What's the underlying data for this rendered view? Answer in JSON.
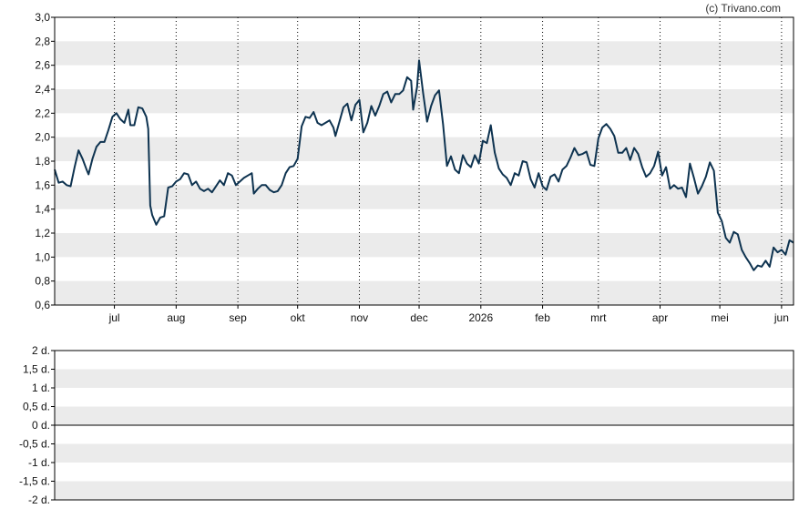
{
  "copyright": "(c) Trivano.com",
  "colors": {
    "line": "#0e3350",
    "band": "#ebebeb",
    "frame": "#000000",
    "vgrid": "#000000"
  },
  "chart_data": [
    {
      "type": "line",
      "title": "",
      "xlabel": "",
      "ylabel": "",
      "ylim": [
        0.6,
        3.0
      ],
      "grid": "alternating horizontal bands, dotted vertical month lines",
      "y_ticks": [
        "3,0",
        "2,8",
        "2,6",
        "2,4",
        "2,2",
        "2,0",
        "1,8",
        "1,6",
        "1,4",
        "1,2",
        "1,0",
        "0,8",
        "0,6"
      ],
      "x_ticks": [
        {
          "label": "jul",
          "day": 30
        },
        {
          "label": "aug",
          "day": 61
        },
        {
          "label": "sep",
          "day": 92
        },
        {
          "label": "okt",
          "day": 122
        },
        {
          "label": "nov",
          "day": 153
        },
        {
          "label": "dec",
          "day": 183
        },
        {
          "label": "2026",
          "day": 214
        },
        {
          "label": "feb",
          "day": 245
        },
        {
          "label": "mrt",
          "day": 273
        },
        {
          "label": "apr",
          "day": 304
        },
        {
          "label": "mei",
          "day": 334
        },
        {
          "label": "jun",
          "day": 365
        }
      ],
      "x_domain": [
        0,
        371
      ],
      "series": [
        {
          "points": [
            [
              0,
              1.73
            ],
            [
              2,
              1.62
            ],
            [
              4,
              1.63
            ],
            [
              6,
              1.6
            ],
            [
              8,
              1.59
            ],
            [
              10,
              1.75
            ],
            [
              12,
              1.89
            ],
            [
              14,
              1.82
            ],
            [
              16,
              1.73
            ],
            [
              17,
              1.69
            ],
            [
              19,
              1.82
            ],
            [
              21,
              1.92
            ],
            [
              23,
              1.96
            ],
            [
              25,
              1.96
            ],
            [
              27,
              2.06
            ],
            [
              29,
              2.17
            ],
            [
              31,
              2.2
            ],
            [
              33,
              2.15
            ],
            [
              35,
              2.12
            ],
            [
              37,
              2.23
            ],
            [
              38,
              2.1
            ],
            [
              40,
              2.1
            ],
            [
              42,
              2.25
            ],
            [
              44,
              2.24
            ],
            [
              46,
              2.17
            ],
            [
              47,
              2.07
            ],
            [
              48,
              1.43
            ],
            [
              49,
              1.35
            ],
            [
              51,
              1.27
            ],
            [
              53,
              1.33
            ],
            [
              55,
              1.34
            ],
            [
              57,
              1.58
            ],
            [
              59,
              1.59
            ],
            [
              61,
              1.63
            ],
            [
              63,
              1.65
            ],
            [
              65,
              1.7
            ],
            [
              67,
              1.69
            ],
            [
              69,
              1.6
            ],
            [
              71,
              1.63
            ],
            [
              73,
              1.57
            ],
            [
              75,
              1.55
            ],
            [
              77,
              1.57
            ],
            [
              79,
              1.54
            ],
            [
              81,
              1.59
            ],
            [
              83,
              1.64
            ],
            [
              85,
              1.6
            ],
            [
              87,
              1.7
            ],
            [
              89,
              1.68
            ],
            [
              91,
              1.6
            ],
            [
              93,
              1.63
            ],
            [
              95,
              1.66
            ],
            [
              97,
              1.68
            ],
            [
              99,
              1.7
            ],
            [
              100,
              1.53
            ],
            [
              102,
              1.57
            ],
            [
              104,
              1.6
            ],
            [
              106,
              1.6
            ],
            [
              108,
              1.56
            ],
            [
              110,
              1.54
            ],
            [
              112,
              1.55
            ],
            [
              114,
              1.6
            ],
            [
              116,
              1.7
            ],
            [
              118,
              1.75
            ],
            [
              120,
              1.76
            ],
            [
              122,
              1.82
            ],
            [
              124,
              2.09
            ],
            [
              126,
              2.17
            ],
            [
              128,
              2.16
            ],
            [
              130,
              2.21
            ],
            [
              132,
              2.12
            ],
            [
              134,
              2.1
            ],
            [
              136,
              2.12
            ],
            [
              138,
              2.14
            ],
            [
              140,
              2.08
            ],
            [
              141,
              2.01
            ],
            [
              143,
              2.13
            ],
            [
              145,
              2.25
            ],
            [
              147,
              2.28
            ],
            [
              149,
              2.14
            ],
            [
              151,
              2.27
            ],
            [
              153,
              2.31
            ],
            [
              155,
              2.04
            ],
            [
              157,
              2.12
            ],
            [
              159,
              2.26
            ],
            [
              161,
              2.18
            ],
            [
              163,
              2.26
            ],
            [
              165,
              2.36
            ],
            [
              167,
              2.38
            ],
            [
              169,
              2.29
            ],
            [
              171,
              2.36
            ],
            [
              173,
              2.36
            ],
            [
              175,
              2.39
            ],
            [
              177,
              2.5
            ],
            [
              179,
              2.47
            ],
            [
              180,
              2.23
            ],
            [
              182,
              2.42
            ],
            [
              183,
              2.64
            ],
            [
              185,
              2.37
            ],
            [
              187,
              2.13
            ],
            [
              189,
              2.26
            ],
            [
              191,
              2.35
            ],
            [
              193,
              2.39
            ],
            [
              195,
              2.11
            ],
            [
              197,
              1.76
            ],
            [
              199,
              1.84
            ],
            [
              201,
              1.73
            ],
            [
              203,
              1.7
            ],
            [
              205,
              1.85
            ],
            [
              207,
              1.78
            ],
            [
              209,
              1.75
            ],
            [
              211,
              1.85
            ],
            [
              213,
              1.78
            ],
            [
              215,
              1.97
            ],
            [
              217,
              1.95
            ],
            [
              219,
              2.1
            ],
            [
              221,
              1.87
            ],
            [
              223,
              1.74
            ],
            [
              225,
              1.69
            ],
            [
              227,
              1.66
            ],
            [
              229,
              1.6
            ],
            [
              231,
              1.7
            ],
            [
              233,
              1.68
            ],
            [
              235,
              1.8
            ],
            [
              237,
              1.79
            ],
            [
              239,
              1.65
            ],
            [
              241,
              1.58
            ],
            [
              243,
              1.7
            ],
            [
              245,
              1.59
            ],
            [
              247,
              1.56
            ],
            [
              249,
              1.67
            ],
            [
              251,
              1.69
            ],
            [
              253,
              1.63
            ],
            [
              255,
              1.73
            ],
            [
              257,
              1.76
            ],
            [
              259,
              1.83
            ],
            [
              261,
              1.91
            ],
            [
              263,
              1.85
            ],
            [
              265,
              1.86
            ],
            [
              267,
              1.88
            ],
            [
              269,
              1.77
            ],
            [
              271,
              1.76
            ],
            [
              273,
              1.99
            ],
            [
              275,
              2.08
            ],
            [
              277,
              2.11
            ],
            [
              279,
              2.07
            ],
            [
              281,
              2.01
            ],
            [
              283,
              1.87
            ],
            [
              285,
              1.87
            ],
            [
              287,
              1.91
            ],
            [
              289,
              1.81
            ],
            [
              291,
              1.91
            ],
            [
              293,
              1.86
            ],
            [
              295,
              1.75
            ],
            [
              297,
              1.67
            ],
            [
              299,
              1.7
            ],
            [
              301,
              1.76
            ],
            [
              303,
              1.88
            ],
            [
              305,
              1.68
            ],
            [
              307,
              1.75
            ],
            [
              309,
              1.57
            ],
            [
              311,
              1.6
            ],
            [
              313,
              1.57
            ],
            [
              315,
              1.58
            ],
            [
              317,
              1.5
            ],
            [
              319,
              1.78
            ],
            [
              321,
              1.66
            ],
            [
              323,
              1.53
            ],
            [
              325,
              1.59
            ],
            [
              327,
              1.67
            ],
            [
              329,
              1.79
            ],
            [
              331,
              1.72
            ],
            [
              333,
              1.37
            ],
            [
              335,
              1.3
            ],
            [
              337,
              1.16
            ],
            [
              339,
              1.12
            ],
            [
              341,
              1.21
            ],
            [
              343,
              1.19
            ],
            [
              345,
              1.06
            ],
            [
              347,
              1.0
            ],
            [
              349,
              0.95
            ],
            [
              351,
              0.89
            ],
            [
              353,
              0.93
            ],
            [
              355,
              0.92
            ],
            [
              357,
              0.97
            ],
            [
              359,
              0.92
            ],
            [
              361,
              1.08
            ],
            [
              363,
              1.04
            ],
            [
              365,
              1.06
            ],
            [
              367,
              1.02
            ],
            [
              369,
              1.14
            ],
            [
              371,
              1.12
            ]
          ]
        }
      ]
    },
    {
      "type": "line",
      "title": "",
      "ylim": [
        -2,
        2
      ],
      "grid": "alternating horizontal bands",
      "y_ticks": [
        "2 d.",
        "1,5 d.",
        "1 d.",
        "0,5 d.",
        "0 d.",
        "-0,5 d.",
        "-1 d.",
        "-1,5 d.",
        "-2 d."
      ],
      "series": []
    }
  ]
}
